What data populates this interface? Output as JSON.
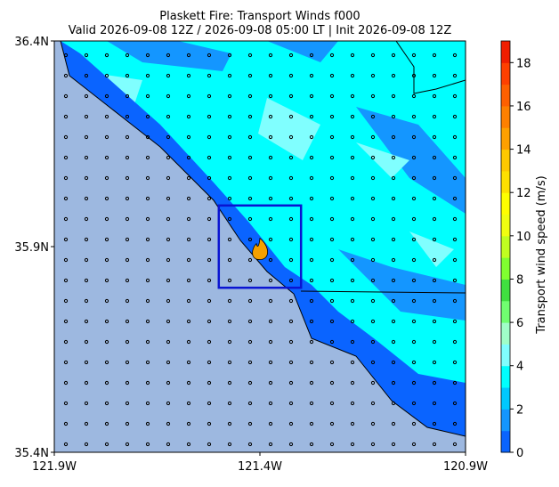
{
  "chart_data": {
    "type": "map",
    "title": "Plaskett Fire: Transport Winds f000",
    "subtitle": "Valid 2026-09-08 12Z / 2026-09-08 05:00 LT | Init 2026-09-08 12Z",
    "xlim": [
      -121.9,
      -120.9
    ],
    "ylim": [
      35.4,
      36.4
    ],
    "xticks": [
      {
        "value": -121.9,
        "label": "121.9W"
      },
      {
        "value": -121.4,
        "label": "121.4W"
      },
      {
        "value": -120.9,
        "label": "120.9W"
      }
    ],
    "yticks": [
      {
        "value": 35.4,
        "label": "35.4N"
      },
      {
        "value": 35.9,
        "label": "35.9N"
      },
      {
        "value": 36.4,
        "label": "36.4N"
      }
    ],
    "fire_box": {
      "lon": [
        -121.5,
        -121.3
      ],
      "lat": [
        35.8,
        36.0
      ],
      "color": "#0a14d2"
    },
    "fire_location": {
      "lon": -121.4,
      "lat": 35.89,
      "color": "#f5a000"
    },
    "colorbar": {
      "label": "Transport wind speed (m/s)",
      "lim": [
        0,
        19
      ],
      "levels": [
        0,
        1,
        2,
        3,
        4,
        5,
        6,
        7,
        8,
        9,
        10,
        11,
        12,
        13,
        14,
        15,
        16,
        17,
        18,
        19
      ],
      "colors": [
        "#0a64ff",
        "#1496ff",
        "#00c8ff",
        "#00ffff",
        "#80ffff",
        "#a0ffc8",
        "#70ff70",
        "#40e040",
        "#80ff30",
        "#c0ff20",
        "#f0ff10",
        "#ffff00",
        "#ffe000",
        "#ffc800",
        "#ffa000",
        "#ff8000",
        "#ff6000",
        "#ff4000",
        "#f01e00"
      ],
      "ticks": [
        0,
        2,
        4,
        6,
        8,
        10,
        12,
        14,
        16,
        18
      ]
    }
  }
}
